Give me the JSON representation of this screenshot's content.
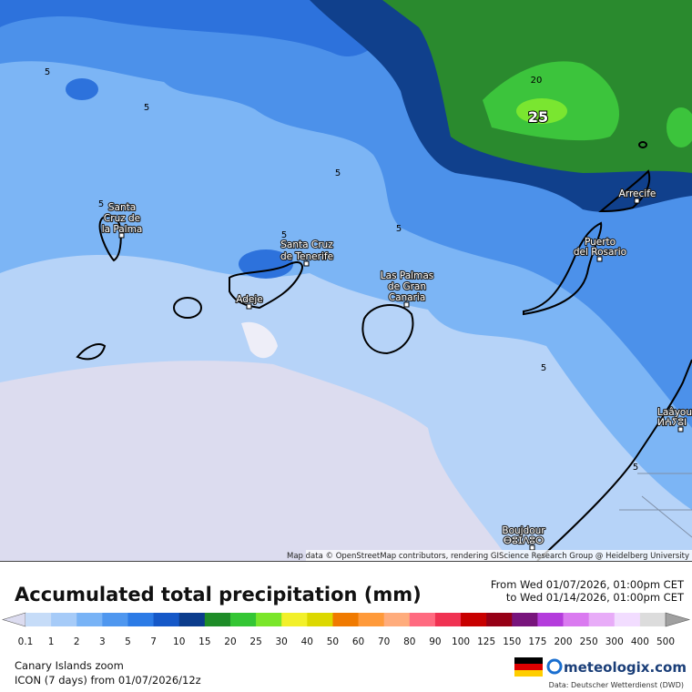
{
  "map": {
    "cities": [
      {
        "lines": [
          "Santa",
          "Cruz de",
          "la Palma"
        ]
      },
      {
        "lines": [
          "Santa Cruz",
          "de Tenerife"
        ]
      },
      {
        "lines": [
          "Adeje"
        ]
      },
      {
        "lines": [
          "Las Palmas",
          "de Gran",
          "Canaria"
        ]
      },
      {
        "lines": [
          "Puerto",
          "del Rosario"
        ]
      },
      {
        "lines": [
          "Arrecife"
        ]
      },
      {
        "lines": [
          "Laâyoune",
          "ⵍⵄⵢⵓⵏ"
        ]
      },
      {
        "lines": [
          "Boujdour",
          "ⴱⵓⵊⴷⵓⵔ"
        ]
      }
    ],
    "contour_labels": [
      5,
      5,
      5,
      5,
      5,
      5,
      5,
      5,
      20,
      25
    ],
    "attribution": "Map data © OpenStreetMap contributors, rendering GIScience Research Group @ Heidelberg University"
  },
  "legend": {
    "title": "Accumulated total precipitation (mm)",
    "period": [
      "From Wed 01/07/2026, 01:00pm CET",
      "to Wed 01/14/2026, 01:00pm CET"
    ],
    "ticks": [
      0.1,
      1,
      2,
      3,
      5,
      7,
      10,
      15,
      20,
      25,
      30,
      40,
      50,
      60,
      70,
      80,
      90,
      100,
      125,
      150,
      175,
      200,
      250,
      300,
      400,
      500
    ],
    "colors": [
      "#c6dcf8",
      "#a6cbf8",
      "#78b3f6",
      "#4f97ef",
      "#2c7be6",
      "#1558c8",
      "#0b3c8c",
      "#1e8c28",
      "#34c634",
      "#7ae62a",
      "#f2f02a",
      "#dcd800",
      "#f07a00",
      "#ff9a3a",
      "#ffac7c",
      "#ff6a80",
      "#f03252",
      "#c80000",
      "#960016",
      "#78147c",
      "#b43cdc",
      "#da7af0",
      "#e8acf8",
      "#f2ddff",
      "#dcdcdc"
    ],
    "below_color": "#dcdcf0",
    "above_color": "#a0a0a0"
  },
  "footer": {
    "region": "Canary Islands zoom",
    "model": "ICON (7 days) from 01/07/2026/12z",
    "brand": "meteologix.com",
    "source": "Data: Deutscher Wetterdienst (DWD)"
  }
}
